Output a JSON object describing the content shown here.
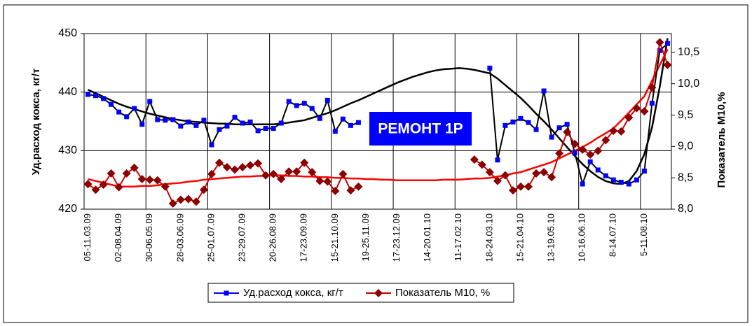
{
  "chart_data": {
    "type": "line",
    "y_label": "Уд.расход кокса, кг/т",
    "y2_label": "Показатель М10,%",
    "annotation": "РЕМОНТ 1Р",
    "categories": [
      "05-11.03.09",
      null,
      null,
      null,
      "02-08.04.09",
      null,
      null,
      null,
      "30-06.05.09",
      null,
      null,
      null,
      "28-03.06.09",
      null,
      null,
      null,
      "25-01.07.09",
      null,
      null,
      null,
      "23-29.07.09",
      null,
      null,
      null,
      "20-26.08.09",
      null,
      null,
      null,
      "17-23.09.09",
      null,
      null,
      null,
      "15-21.10.09",
      null,
      null,
      null,
      "19-25.11.09",
      null,
      null,
      null,
      "17-23.12.09",
      null,
      null,
      null,
      "14-20.01.10",
      null,
      null,
      null,
      "11-17.02.10",
      null,
      null,
      null,
      "18-24.03.10",
      null,
      null,
      null,
      "15-21.04.10",
      null,
      null,
      null,
      "13-19.05.10",
      null,
      null,
      null,
      "10-16.06.10",
      null,
      null,
      null,
      "8-14.07.10",
      null,
      null,
      null,
      "5-11.08.10",
      null,
      null,
      null
    ],
    "series": [
      {
        "name": "Уд.расход кокса, кг/т",
        "color": "#0000ff",
        "line_color": "#000000",
        "marker": "square",
        "values": [
          439.6,
          439.4,
          438.9,
          437.9,
          436.6,
          435.8,
          437.2,
          434.5,
          438.4,
          435.3,
          435.2,
          435.3,
          434.2,
          434.9,
          434.3,
          435.2,
          431.0,
          433.6,
          434.2,
          435.7,
          434.7,
          434.9,
          433.4,
          433.8,
          433.8,
          434.7,
          438.4,
          437.7,
          438.1,
          437.2,
          435.5,
          438.6,
          433.3,
          435.4,
          434.3,
          434.8,
          null,
          null,
          null,
          null,
          null,
          null,
          null,
          null,
          null,
          null,
          null,
          null,
          null,
          null,
          null,
          null,
          444.1,
          428.4,
          434.3,
          434.9,
          435.5,
          434.8,
          433.6,
          440.2,
          432.3,
          433.9,
          434.5,
          429.6,
          424.3,
          428.1,
          426.7,
          425.7,
          425.0,
          424.6,
          424.3,
          425.0,
          426.5,
          438.1,
          447.1,
          448.3
        ]
      },
      {
        "name": "Показатель М10, %",
        "color": "#8b0000",
        "line_color": "#cc0000",
        "marker": "diamond",
        "axis": "y2",
        "values": [
          8.4,
          8.31,
          8.39,
          8.57,
          8.35,
          8.57,
          8.66,
          8.48,
          8.47,
          8.46,
          8.36,
          8.09,
          8.15,
          8.16,
          8.12,
          8.31,
          8.56,
          8.74,
          8.67,
          8.63,
          8.67,
          8.7,
          8.73,
          8.54,
          8.56,
          8.48,
          8.6,
          8.6,
          8.74,
          8.59,
          8.45,
          8.44,
          8.29,
          8.56,
          8.3,
          8.36,
          null,
          null,
          null,
          null,
          null,
          null,
          null,
          null,
          null,
          null,
          null,
          null,
          null,
          null,
          8.79,
          8.71,
          8.59,
          8.45,
          8.54,
          8.3,
          8.36,
          8.36,
          8.57,
          8.59,
          8.51,
          8.89,
          9.23,
          9.04,
          8.95,
          8.87,
          8.93,
          9.1,
          9.25,
          9.24,
          9.46,
          9.61,
          9.56,
          9.94,
          10.66,
          10.3
        ]
      }
    ],
    "trendlines": [
      {
        "color": "#000000",
        "values": [
          440.4,
          439.8,
          439.2,
          438.6,
          438.0,
          437.5,
          437.1,
          436.7,
          436.3,
          436.0,
          435.7,
          435.4,
          435.2,
          435.0,
          434.9,
          434.8,
          434.7,
          434.6,
          434.6,
          434.5,
          434.5,
          434.5,
          434.5,
          434.5,
          434.5,
          434.6,
          434.8,
          435.0,
          435.2,
          435.6,
          436.0,
          436.4,
          436.9,
          437.5,
          438.1,
          438.6,
          439.2,
          439.8,
          440.4,
          441.0,
          441.6,
          442.1,
          442.6,
          443.0,
          443.4,
          443.7,
          443.9,
          444.0,
          444.1,
          444.0,
          443.8,
          443.5,
          443.2,
          442.3,
          441.2,
          440.1,
          439.0,
          437.7,
          436.3,
          435.0,
          433.6,
          432.1,
          430.6,
          429.1,
          427.7,
          426.5,
          425.5,
          424.8,
          424.4,
          424.3,
          424.8,
          426.5,
          429.4,
          434.0,
          441.0,
          449.2
        ]
      },
      {
        "color": "#ff0000",
        "axis": "y2",
        "values": [
          8.48,
          8.45,
          8.42,
          8.39,
          8.36,
          8.36,
          8.36,
          8.37,
          8.37,
          8.38,
          8.4,
          8.41,
          8.42,
          8.44,
          8.45,
          8.47,
          8.48,
          8.49,
          8.5,
          8.51,
          8.52,
          8.52,
          8.53,
          8.53,
          8.54,
          8.54,
          8.53,
          8.53,
          8.52,
          8.52,
          8.51,
          8.51,
          8.5,
          8.5,
          8.49,
          8.49,
          8.48,
          8.48,
          8.47,
          8.47,
          8.46,
          8.46,
          8.46,
          8.46,
          8.46,
          8.46,
          8.47,
          8.47,
          8.47,
          8.48,
          8.49,
          8.49,
          8.5,
          8.52,
          8.54,
          8.57,
          8.59,
          8.63,
          8.67,
          8.71,
          8.75,
          8.81,
          8.87,
          8.93,
          8.99,
          9.06,
          9.14,
          9.21,
          9.29,
          9.41,
          9.54,
          9.67,
          9.8,
          10.05,
          10.3,
          10.55
        ]
      }
    ],
    "ylim": [
      420,
      450
    ],
    "yticks": [
      420,
      430,
      440,
      450
    ],
    "y2lim": [
      8,
      10.8
    ],
    "y2ticks": [
      {
        "value": 8,
        "label": "8,0"
      },
      {
        "value": 8.5,
        "label": "8,5"
      },
      {
        "value": 9,
        "label": "9,0"
      },
      {
        "value": 9.5,
        "label": "9,5"
      },
      {
        "value": 10,
        "label": "10,0"
      },
      {
        "value": 10.5,
        "label": "10,5"
      }
    ],
    "grid": true,
    "legend": "bottom"
  }
}
